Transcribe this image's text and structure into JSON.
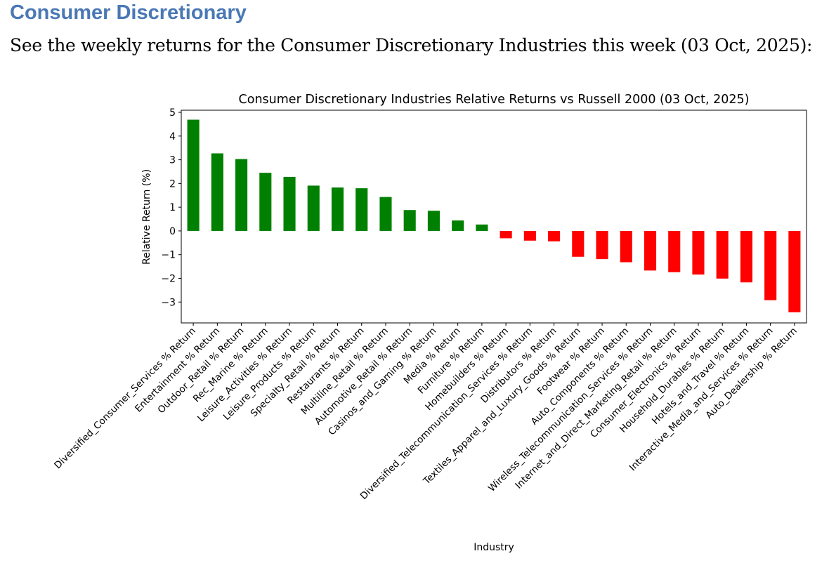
{
  "heading": "Consumer Discretionary",
  "intro": "See the weekly returns for the Consumer Discretionary Industries this week (03 Oct, 2025):",
  "colors": {
    "positive": "#008000",
    "negative": "#ff0000",
    "heading": "#4a78b5"
  },
  "chart_data": {
    "type": "bar",
    "title": "Consumer Discretionary Industries Relative Returns vs Russell 2000 (03 Oct, 2025)",
    "xlabel": "Industry",
    "ylabel": "Relative Return (%)",
    "ylim": [
      -3.88,
      5.09
    ],
    "yticks": [
      -3,
      -2,
      -1,
      0,
      1,
      2,
      3,
      4,
      5
    ],
    "grid": false,
    "categories": [
      "Diversified_Consumer_Services % Return",
      "Entertainment % Return",
      "Outdoor_Retail % Return",
      "Rec_Marine % Return",
      "Leisure_Activities % Return",
      "Leisure_Products % Return",
      "Specialty_Retail % Return",
      "Restaurants % Return",
      "Multiline_Retail % Return",
      "Automotive_Retail % Return",
      "Casinos_and_Gaming % Return",
      "Media % Return",
      "Furniture % Return",
      "Homebuilders % Return",
      "Diversified_Telecommunication_Services % Return",
      "Distributors % Return",
      "Textiles_Apparel_and_Luxury_Goods % Return",
      "Footwear % Return",
      "Auto_Components % Return",
      "Wireless_Telecommunication_Services % Return",
      "Internet_and_Direct_Marketing_Retail % Return",
      "Consumer_Electronics % Return",
      "Household_Durables % Return",
      "Hotels_and_Travel % Return",
      "Interactive_Media_and_Services % Return",
      "Auto_Dealership % Return"
    ],
    "values": [
      4.69,
      3.27,
      3.03,
      2.45,
      2.28,
      1.91,
      1.83,
      1.8,
      1.43,
      0.88,
      0.85,
      0.44,
      0.27,
      -0.31,
      -0.41,
      -0.44,
      -1.09,
      -1.19,
      -1.32,
      -1.67,
      -1.74,
      -1.84,
      -2.01,
      -2.17,
      -2.92,
      -3.43
    ]
  }
}
